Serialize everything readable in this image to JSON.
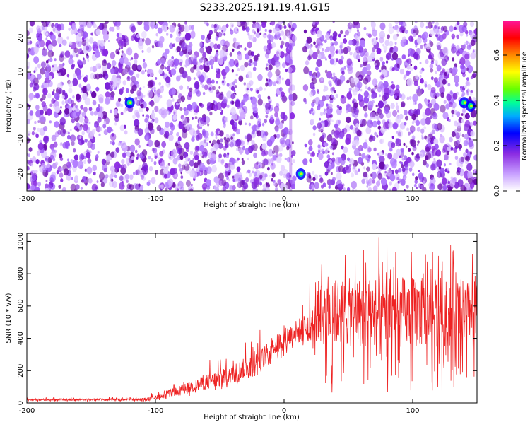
{
  "title": "S233.2025.191.19.41.G15",
  "chart_data": [
    {
      "type": "heatmap",
      "xlabel": "Height of straight line (km)",
      "ylabel": "Frequency (Hz)",
      "xlim": [
        -200,
        150
      ],
      "ylim": [
        -25,
        25
      ],
      "xticks": [
        -200,
        -100,
        0,
        100
      ],
      "yticks": [
        -20,
        -10,
        0,
        10,
        20
      ],
      "colorbar": {
        "label": "Normalized spectral amplitude",
        "range": [
          0.0,
          0.75
        ],
        "ticks": [
          "0.0",
          "0.2",
          "0.4",
          "0.6"
        ],
        "colors": [
          "#ffffff",
          "#d8b8ff",
          "#8a2be2",
          "#0000ff",
          "#00bfff",
          "#00ff80",
          "#7fff00",
          "#ffff00",
          "#ff8000",
          "#ff0000",
          "#ff1493"
        ]
      },
      "blank_band_km": [
        8,
        16
      ],
      "hotspots": [
        {
          "x": -120,
          "y": 1,
          "value": 0.3
        },
        {
          "x": 13,
          "y": -20,
          "value": 0.4
        },
        {
          "x": 140,
          "y": 1,
          "value": 0.45
        },
        {
          "x": 145,
          "y": 0,
          "value": 0.45
        }
      ]
    },
    {
      "type": "line",
      "xlabel": "Height of straight line (km)",
      "ylabel": "SNR (10 * v/v)",
      "xlim": [
        -200,
        150
      ],
      "ylim": [
        0,
        1050
      ],
      "xticks": [
        -200,
        -100,
        0,
        100
      ],
      "yticks": [
        0,
        200,
        400,
        600,
        800,
        1000
      ],
      "color": "#ee2222",
      "envelope": {
        "x": [
          -200,
          -110,
          -100,
          -80,
          -60,
          -40,
          -20,
          0,
          20,
          30,
          60,
          100,
          150
        ],
        "low": [
          10,
          10,
          15,
          30,
          60,
          100,
          170,
          280,
          350,
          60,
          60,
          60,
          80
        ],
        "mean": [
          20,
          22,
          35,
          80,
          130,
          180,
          260,
          400,
          480,
          560,
          560,
          560,
          560
        ],
        "high": [
          35,
          40,
          80,
          160,
          260,
          360,
          450,
          560,
          750,
          960,
          1030,
          1040,
          960
        ]
      }
    }
  ]
}
